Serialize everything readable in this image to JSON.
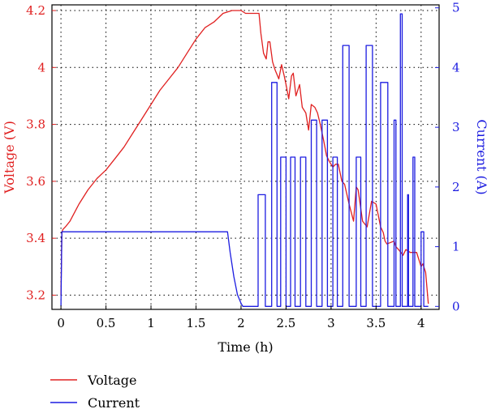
{
  "chart_data": {
    "type": "line",
    "title": "",
    "xlabel": "Time (h)",
    "ylabel_left": "Voltage (V)",
    "ylabel_right": "Current (A)",
    "xlim": [
      -0.1,
      4.2
    ],
    "ylim_left": [
      3.15,
      4.22
    ],
    "ylim_right": [
      -0.05,
      5.05
    ],
    "x_ticks": [
      "0",
      "0.5",
      "1",
      "1.5",
      "2",
      "2.5",
      "3",
      "3.5",
      "4"
    ],
    "x_tick_values": [
      0,
      0.5,
      1,
      1.5,
      2,
      2.5,
      3,
      3.5,
      4
    ],
    "y_left_ticks": [
      "3.2",
      "3.4",
      "3.6",
      "3.8",
      "4",
      "4.2"
    ],
    "y_left_tick_values": [
      3.2,
      3.4,
      3.6,
      3.8,
      4.0,
      4.2
    ],
    "y_right_ticks": [
      "0",
      "1",
      "2",
      "3",
      "4",
      "5"
    ],
    "y_right_tick_values": [
      0,
      1,
      2,
      3,
      4,
      5
    ],
    "grid": true,
    "legend_position": "below",
    "colors": {
      "voltage": "#e02020",
      "current": "#1c1ce0",
      "grid": "#000000"
    },
    "series": [
      {
        "name": "Voltage",
        "axis": "left",
        "x": [
          0,
          0.01,
          0.02,
          0.05,
          0.1,
          0.2,
          0.3,
          0.4,
          0.5,
          0.6,
          0.7,
          0.8,
          0.9,
          1.0,
          1.1,
          1.2,
          1.3,
          1.4,
          1.5,
          1.6,
          1.7,
          1.8,
          1.9,
          2.0,
          2.05,
          2.1,
          2.2,
          2.22,
          2.25,
          2.28,
          2.3,
          2.32,
          2.35,
          2.38,
          2.42,
          2.45,
          2.48,
          2.5,
          2.53,
          2.56,
          2.58,
          2.61,
          2.65,
          2.68,
          2.72,
          2.75,
          2.78,
          2.82,
          2.85,
          2.88,
          2.92,
          2.95,
          2.98,
          3.02,
          3.05,
          3.08,
          3.12,
          3.15,
          3.2,
          3.25,
          3.28,
          3.3,
          3.35,
          3.4,
          3.45,
          3.5,
          3.55,
          3.58,
          3.6,
          3.62,
          3.7,
          3.72,
          3.75,
          3.8,
          3.83,
          3.88,
          3.95,
          4.0,
          4.02,
          4.05,
          4.08
        ],
        "values": [
          3.2,
          3.42,
          3.43,
          3.44,
          3.46,
          3.52,
          3.57,
          3.61,
          3.64,
          3.68,
          3.72,
          3.77,
          3.82,
          3.87,
          3.92,
          3.96,
          4.0,
          4.05,
          4.1,
          4.14,
          4.16,
          4.19,
          4.2,
          4.2,
          4.19,
          4.19,
          4.19,
          4.12,
          4.05,
          4.03,
          4.09,
          4.09,
          4.02,
          3.99,
          3.96,
          4.01,
          3.97,
          3.94,
          3.89,
          3.97,
          3.98,
          3.9,
          3.94,
          3.86,
          3.84,
          3.78,
          3.87,
          3.86,
          3.84,
          3.8,
          3.74,
          3.69,
          3.67,
          3.65,
          3.66,
          3.66,
          3.6,
          3.59,
          3.52,
          3.46,
          3.58,
          3.57,
          3.46,
          3.44,
          3.53,
          3.52,
          3.44,
          3.42,
          3.39,
          3.38,
          3.39,
          3.37,
          3.36,
          3.34,
          3.36,
          3.35,
          3.35,
          3.3,
          3.31,
          3.28,
          3.17
        ]
      },
      {
        "name": "Current",
        "axis": "right",
        "x": [
          0,
          0.01,
          0.02,
          1.85,
          1.88,
          1.92,
          1.96,
          2.0,
          2.02,
          2.04,
          2.19,
          2.19,
          2.27,
          2.27,
          2.34,
          2.34,
          2.4,
          2.4,
          2.44,
          2.44,
          2.5,
          2.5,
          2.55,
          2.55,
          2.6,
          2.6,
          2.66,
          2.66,
          2.72,
          2.72,
          2.78,
          2.78,
          2.84,
          2.84,
          2.9,
          2.9,
          2.96,
          2.96,
          3.02,
          3.02,
          3.07,
          3.07,
          3.13,
          3.13,
          3.2,
          3.2,
          3.28,
          3.28,
          3.33,
          3.33,
          3.39,
          3.39,
          3.46,
          3.46,
          3.55,
          3.55,
          3.63,
          3.63,
          3.7,
          3.7,
          3.72,
          3.72,
          3.77,
          3.77,
          3.79,
          3.79,
          3.85,
          3.85,
          3.86,
          3.86,
          3.91,
          3.91,
          3.93,
          3.93,
          4.0,
          4.0,
          4.03,
          4.03,
          4.08
        ],
        "values": [
          0,
          1.25,
          1.25,
          1.25,
          0.9,
          0.5,
          0.2,
          0.05,
          0,
          0,
          0,
          1.87,
          1.87,
          0,
          0,
          3.75,
          3.75,
          0,
          0,
          2.5,
          2.5,
          0,
          0,
          2.5,
          2.5,
          0,
          0,
          2.5,
          2.5,
          0,
          0,
          3.12,
          3.12,
          0,
          0,
          3.12,
          3.12,
          0,
          0,
          2.5,
          2.5,
          0,
          0,
          4.37,
          4.37,
          0,
          0,
          2.5,
          2.5,
          0,
          0,
          4.37,
          4.37,
          0,
          0,
          3.75,
          3.75,
          0,
          0,
          3.12,
          3.12,
          0,
          0,
          4.9,
          4.9,
          0,
          0,
          1.87,
          1.87,
          0,
          0,
          2.5,
          2.5,
          0,
          0,
          1.25,
          1.25,
          0,
          0
        ]
      }
    ]
  }
}
